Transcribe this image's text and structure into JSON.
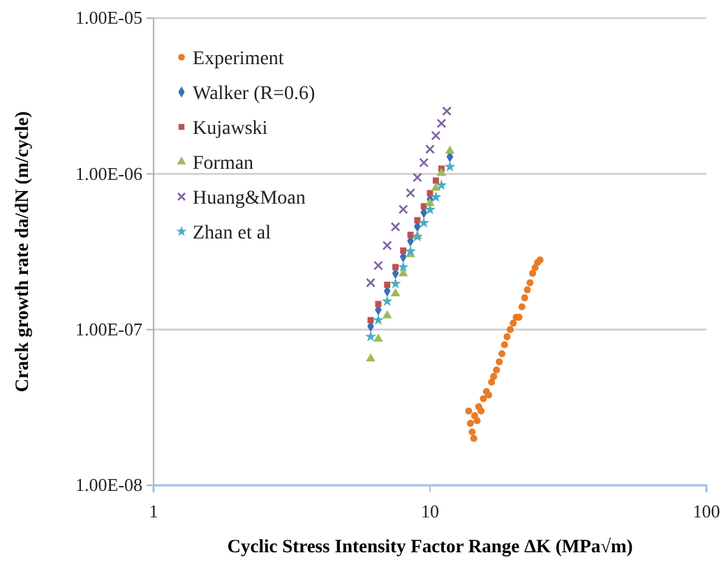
{
  "chart_data": {
    "type": "scatter",
    "xlabel": "Cyclic Stress Intensity Factor Range ΔK (MPa√m)",
    "ylabel": "Crack growth rate da/dN (m/cycle)",
    "log": "xy",
    "grid": "y",
    "legend": "top left",
    "xlim": [
      1,
      100
    ],
    "xticks": [
      1,
      10,
      100
    ],
    "ylim": [
      1e-08,
      1e-05
    ],
    "yticks": [
      {
        "value": 1e-08,
        "label": "1.00E-08"
      },
      {
        "value": 1e-07,
        "label": "1.00E-07"
      },
      {
        "value": 1e-06,
        "label": "1.00E-06"
      },
      {
        "value": 1e-05,
        "label": "1.00E-05"
      }
    ],
    "series": [
      {
        "name": "Experiment",
        "color": "#e97c27",
        "marker": "circle",
        "x": [
          13.8,
          14.0,
          14.2,
          14.4,
          14.5,
          14.8,
          15.0,
          15.3,
          15.6,
          16.0,
          16.3,
          16.7,
          17.0,
          17.4,
          17.8,
          18.2,
          18.6,
          19.0,
          19.5,
          20.0,
          20.5,
          21.0,
          21.5,
          22.0,
          22.5,
          23.0,
          23.5,
          24.0,
          24.5,
          25.0
        ],
        "values": [
          3e-08,
          2.5e-08,
          2.2e-08,
          2e-08,
          2.8e-08,
          2.6e-08,
          3.2e-08,
          3e-08,
          3.6e-08,
          4e-08,
          3.8e-08,
          4.6e-08,
          5e-08,
          5.5e-08,
          6.2e-08,
          7e-08,
          8e-08,
          9e-08,
          1e-07,
          1.1e-07,
          1.2e-07,
          1.2e-07,
          1.4e-07,
          1.6e-07,
          1.8e-07,
          2e-07,
          2.3e-07,
          2.5e-07,
          2.7e-07,
          2.8e-07
        ]
      },
      {
        "name": "Walker (R=0.6)",
        "color": "#3b6fb6",
        "marker": "diamond",
        "x": [
          6.1,
          6.5,
          7,
          7.5,
          8,
          8.5,
          9,
          9.5,
          10,
          11.8
        ],
        "values": [
          1.05e-07,
          1.34e-07,
          1.77e-07,
          2.3e-07,
          2.94e-07,
          3.71e-07,
          4.6e-07,
          5.65e-07,
          6.87e-07,
          1.29e-06
        ]
      },
      {
        "name": "Kujawski",
        "color": "#c0504d",
        "marker": "square",
        "x": [
          6.1,
          6.5,
          7,
          7.5,
          8,
          8.5,
          9,
          9.5,
          10,
          10.5,
          11
        ],
        "values": [
          1.15e-07,
          1.46e-07,
          1.94e-07,
          2.52e-07,
          3.22e-07,
          4.06e-07,
          5.04e-07,
          6.19e-07,
          7.52e-07,
          9.06e-07,
          1.08e-06
        ]
      },
      {
        "name": "Forman",
        "color": "#9bbb59",
        "marker": "triangle",
        "x": [
          6.1,
          6.5,
          7,
          7.5,
          8,
          8.5,
          9,
          10,
          10.5,
          11,
          11.8
        ],
        "values": [
          6.5e-08,
          8.7e-08,
          1.23e-07,
          1.7e-07,
          2.29e-07,
          3.04e-07,
          3.97e-07,
          6.47e-07,
          8.12e-07,
          1.01e-06,
          1.4e-06
        ]
      },
      {
        "name": "Huang&Moan",
        "color": "#8064a2",
        "marker": "cross",
        "x": [
          6.1,
          6.5,
          7,
          7.5,
          8,
          8.5,
          9,
          9.5,
          10,
          10.5,
          11,
          11.5
        ],
        "values": [
          2e-07,
          2.58e-07,
          3.47e-07,
          4.57e-07,
          5.92e-07,
          7.54e-07,
          9.48e-07,
          1.18e-06,
          1.44e-06,
          1.76e-06,
          2.11e-06,
          2.53e-06
        ]
      },
      {
        "name": "Zhan et al",
        "color": "#4bacc6",
        "marker": "star",
        "x": [
          6.1,
          6.5,
          7,
          7.5,
          8,
          8.5,
          9,
          9.5,
          10,
          10.5,
          11,
          11.8
        ],
        "values": [
          9e-08,
          1.15e-07,
          1.52e-07,
          1.97e-07,
          2.52e-07,
          3.18e-07,
          3.95e-07,
          4.84e-07,
          5.89e-07,
          7.09e-07,
          8.45e-07,
          1.11e-06
        ]
      }
    ]
  }
}
